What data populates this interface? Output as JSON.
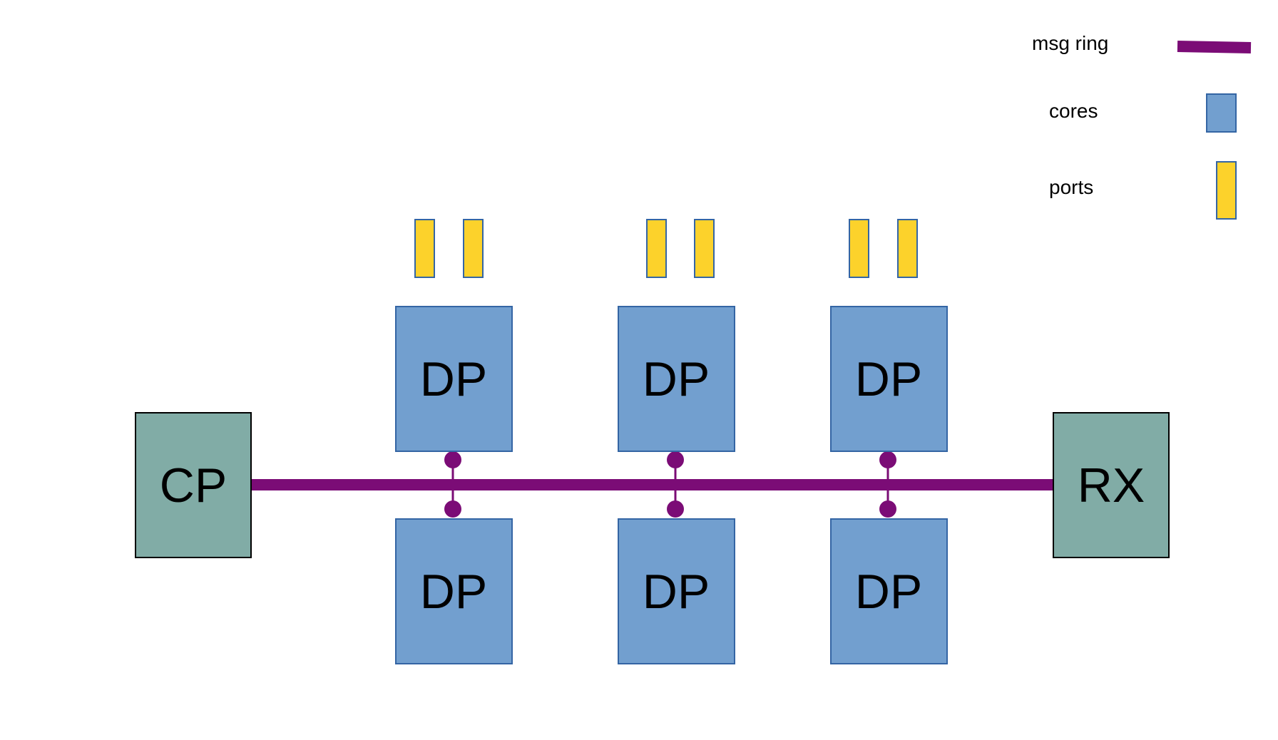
{
  "legend": {
    "ring_label": "msg ring",
    "cores_label": "cores",
    "ports_label": "ports"
  },
  "nodes": {
    "cp": "CP",
    "rx": "RX",
    "dp_top": [
      "DP",
      "DP",
      "DP"
    ],
    "dp_bottom": [
      "DP",
      "DP",
      "DP"
    ]
  },
  "colors": {
    "ring": "#7b0c76",
    "core_fill": "#729fcf",
    "core_stroke": "#3465a4",
    "port_fill": "#fcd22b",
    "port_stroke": "#3465a4",
    "endpoint_fill": "#81aca6",
    "endpoint_stroke": "#000000"
  }
}
